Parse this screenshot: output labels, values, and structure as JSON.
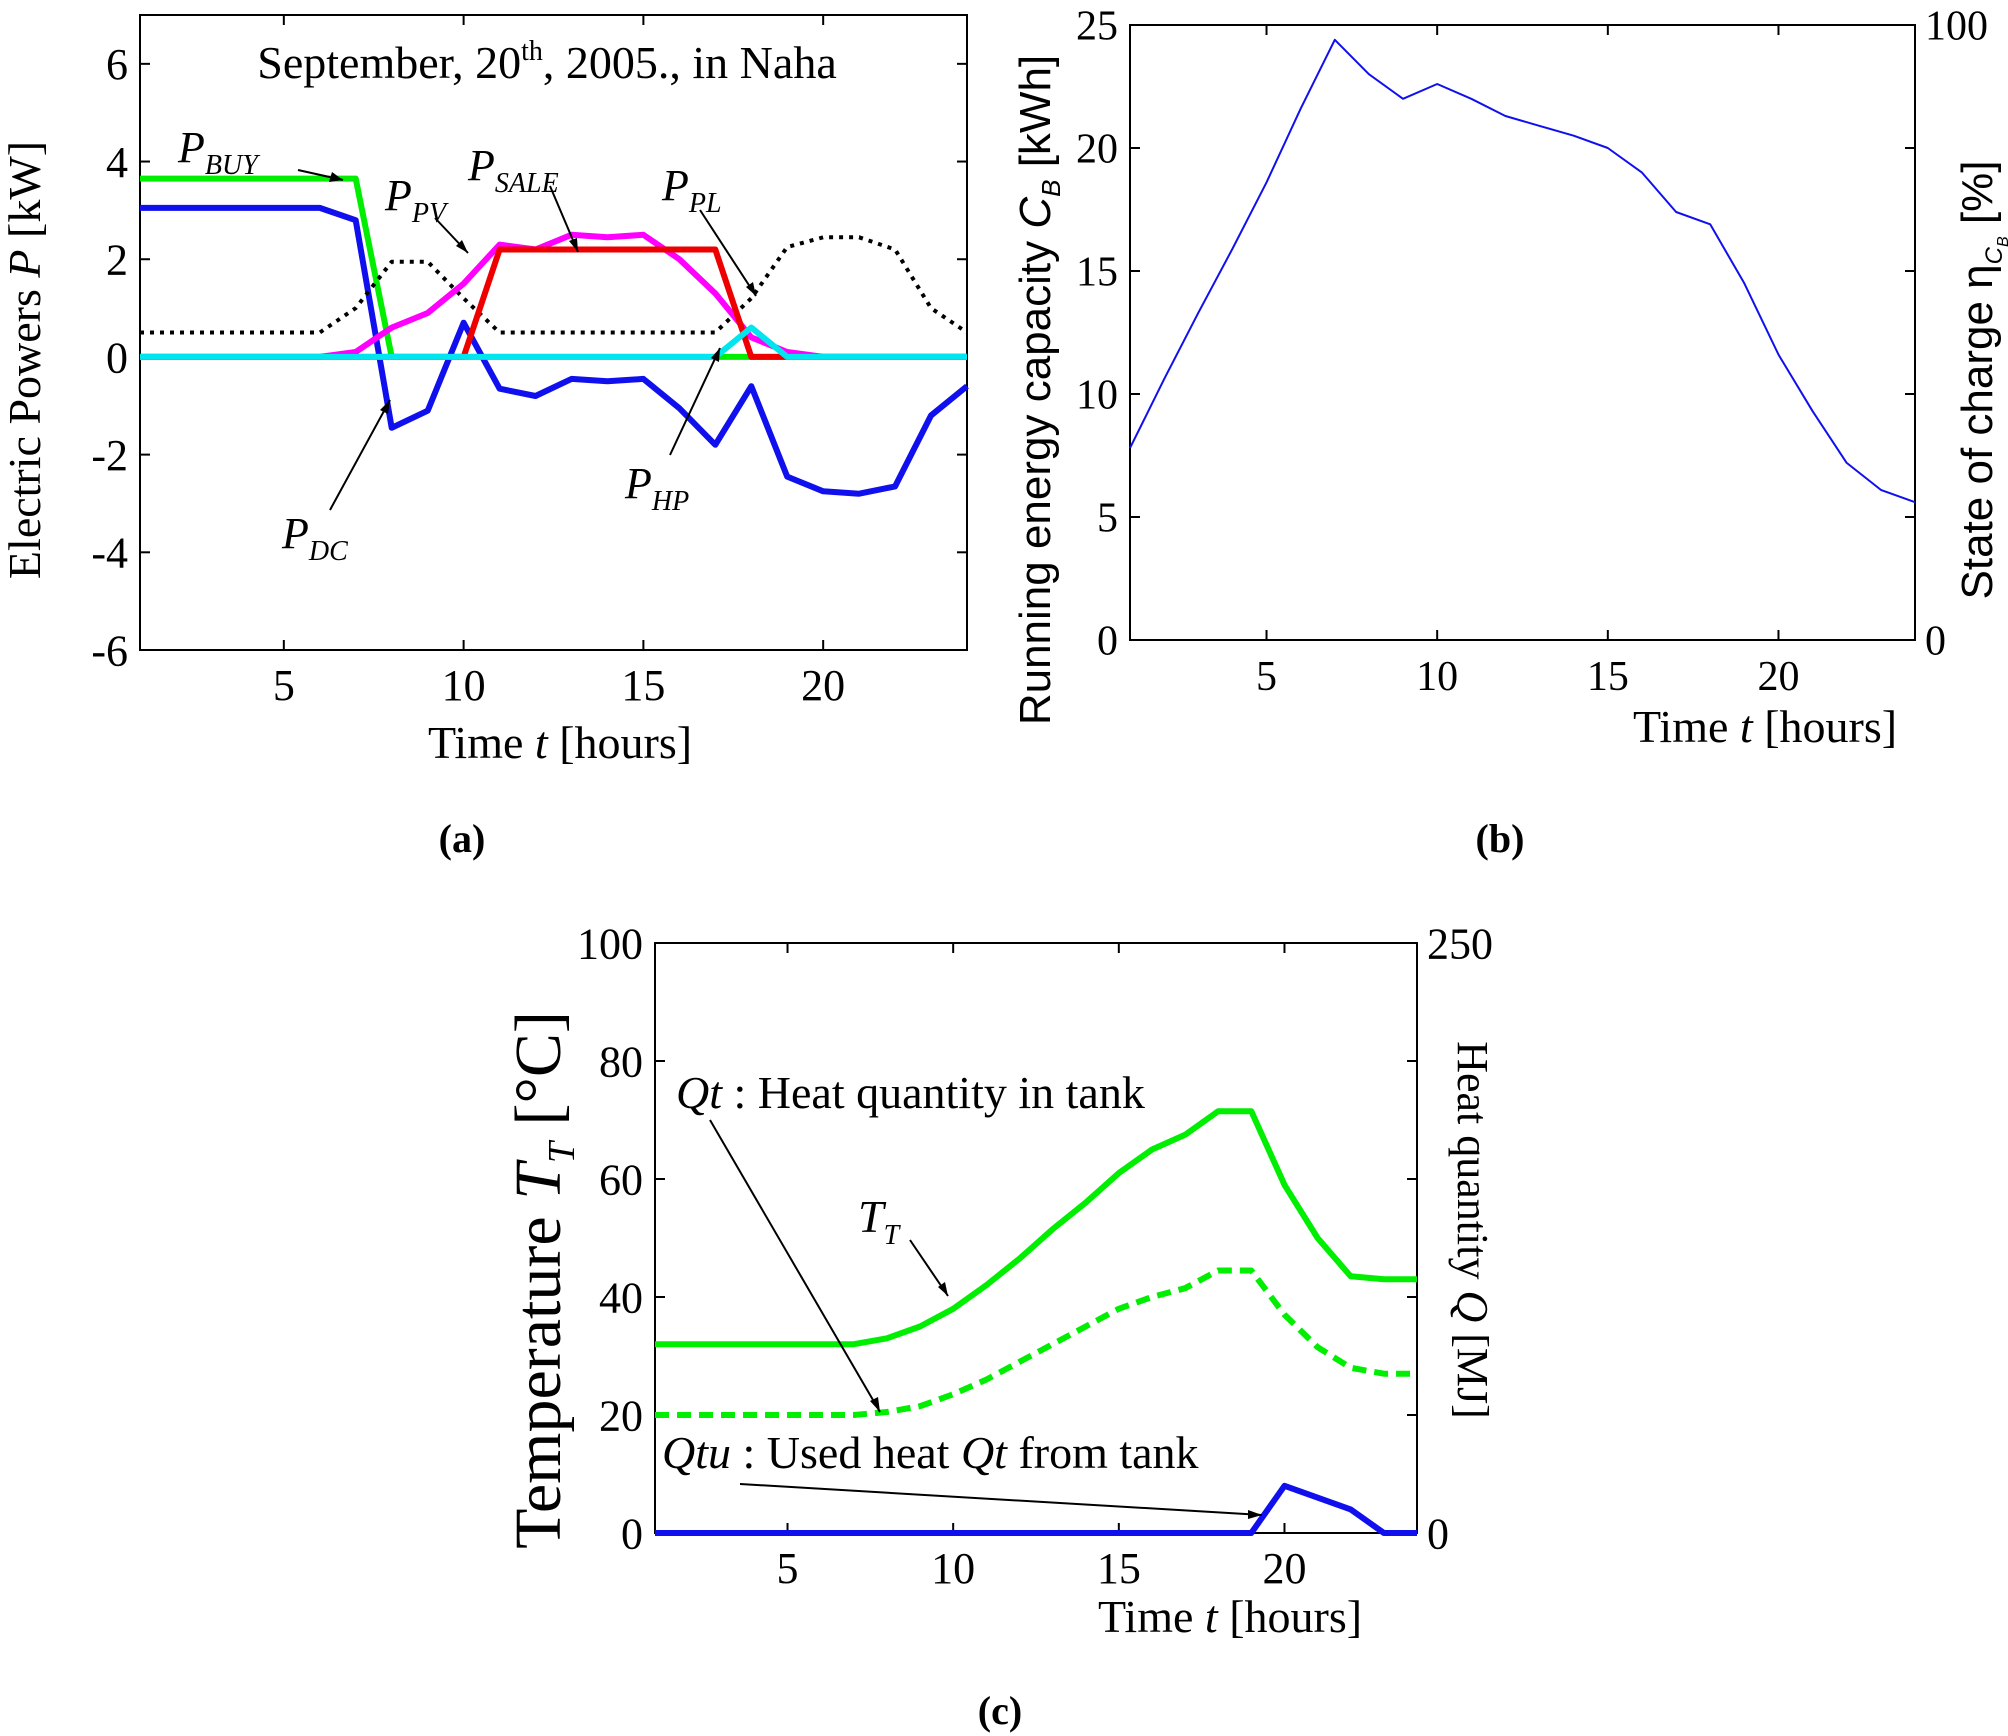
{
  "chart_data": [
    {
      "panel_label": "(a)",
      "type": "line",
      "title": "September, 20th, 2005., in Naha",
      "title_parts": {
        "month": "September, 20",
        "sup": "th",
        "rest": ", 2005., in Naha"
      },
      "xlabel": {
        "pre": "Time ",
        "var": "t",
        "post": " [hours]"
      },
      "ylabel": {
        "pre": "Electric Powers ",
        "var": "P",
        "post": " [kW]"
      },
      "xlim": [
        1,
        24
      ],
      "ylim": [
        -6,
        7
      ],
      "xticks": [
        5,
        10,
        15,
        20
      ],
      "yticks": [
        -6,
        -4,
        -2,
        0,
        2,
        4,
        6
      ],
      "grid": false,
      "series": [
        {
          "key": "buy",
          "name": "P_BUY",
          "color": "#00ee00",
          "dash": "solid",
          "x": [
            1,
            7,
            8,
            24
          ],
          "y": [
            3.65,
            3.65,
            0,
            0
          ]
        },
        {
          "key": "dc",
          "name": "P_DC",
          "color": "#1010ee",
          "dash": "solid",
          "x": [
            1,
            2,
            3,
            4,
            5,
            6,
            7,
            8,
            9,
            10,
            11,
            12,
            13,
            14,
            15,
            16,
            17,
            18,
            19,
            20,
            21,
            22,
            23,
            24
          ],
          "y": [
            3.05,
            3.05,
            3.05,
            3.05,
            3.05,
            3.05,
            2.8,
            -1.45,
            -1.1,
            0.7,
            -0.65,
            -0.8,
            -0.45,
            -0.5,
            -0.45,
            -1.05,
            -1.8,
            -0.6,
            -2.45,
            -2.75,
            -2.8,
            -2.65,
            -1.2,
            -0.6
          ]
        },
        {
          "key": "pl",
          "name": "P_PL",
          "color": "#000000",
          "dash": "dotted",
          "x": [
            1,
            2,
            3,
            4,
            5,
            6,
            7,
            8,
            9,
            10,
            11,
            12,
            13,
            14,
            15,
            16,
            17,
            18,
            19,
            20,
            21,
            22,
            23,
            24
          ],
          "y": [
            0.5,
            0.5,
            0.5,
            0.5,
            0.5,
            0.5,
            1.0,
            1.95,
            1.95,
            1.2,
            0.5,
            0.5,
            0.5,
            0.5,
            0.5,
            0.5,
            0.5,
            1.2,
            2.25,
            2.45,
            2.45,
            2.2,
            1.0,
            0.5
          ]
        },
        {
          "key": "pv",
          "name": "P_PV",
          "color": "#ff00ff",
          "dash": "solid",
          "x": [
            1,
            2,
            3,
            4,
            5,
            6,
            7,
            8,
            9,
            10,
            11,
            12,
            13,
            14,
            15,
            16,
            17,
            18,
            19,
            20,
            21,
            22,
            23,
            24
          ],
          "y": [
            0,
            0,
            0,
            0,
            0,
            0,
            0.1,
            0.6,
            0.9,
            1.5,
            2.3,
            2.2,
            2.5,
            2.45,
            2.5,
            2.0,
            1.3,
            0.4,
            0.1,
            0,
            0,
            0,
            0,
            0
          ]
        },
        {
          "key": "sale",
          "name": "P_SALE",
          "color": "#ee0000",
          "dash": "solid",
          "x": [
            1,
            10,
            11,
            17,
            18,
            24
          ],
          "y": [
            0,
            0,
            2.2,
            2.2,
            0,
            0
          ]
        },
        {
          "key": "hp",
          "name": "P_HP",
          "color": "#00e5ee",
          "dash": "solid",
          "x": [
            1,
            17,
            18,
            19,
            24
          ],
          "y": [
            0,
            0,
            0.6,
            0,
            0
          ]
        }
      ],
      "annotations": [
        {
          "key": "buy",
          "main": "P",
          "sub": "BUY"
        },
        {
          "key": "pv",
          "main": "P",
          "sub": "PV"
        },
        {
          "key": "sale",
          "main": "P",
          "sub": "SALE"
        },
        {
          "key": "pl",
          "main": "P",
          "sub": "PL"
        },
        {
          "key": "dc",
          "main": "P",
          "sub": "DC"
        },
        {
          "key": "hp",
          "main": "P",
          "sub": "HP"
        }
      ]
    },
    {
      "panel_label": "(b)",
      "type": "line",
      "title": "",
      "xlabel": {
        "pre": "Time ",
        "var": "t",
        "post": " [hours]"
      },
      "ylabel": {
        "pre": "Running energy capacity ",
        "var": "C",
        "sub": "B",
        "post": " [kWh]"
      },
      "y2label": {
        "pre": "State of charge η",
        "sub": "C",
        "subsub": "B",
        "post": " [%]"
      },
      "xlim": [
        1,
        24
      ],
      "ylim": [
        0,
        25
      ],
      "y2lim": [
        0,
        100
      ],
      "xticks": [
        5,
        10,
        15,
        20
      ],
      "yticks": [
        0,
        5,
        10,
        15,
        20,
        25
      ],
      "y2ticks": [
        0,
        100
      ],
      "grid": false,
      "series": [
        {
          "key": "cb",
          "name": "",
          "color": "#1010ee",
          "dash": "solid",
          "x": [
            1,
            2,
            3,
            4,
            5,
            6,
            7,
            8,
            9,
            10,
            11,
            12,
            13,
            14,
            15,
            16,
            17,
            18,
            19,
            20,
            21,
            22,
            23,
            24
          ],
          "y": [
            7.8,
            10.6,
            13.3,
            15.9,
            18.6,
            21.6,
            24.4,
            23.0,
            22.0,
            22.6,
            22.0,
            21.3,
            20.9,
            20.5,
            20.0,
            19.0,
            17.4,
            16.9,
            14.5,
            11.6,
            9.3,
            7.2,
            6.1,
            5.6
          ]
        }
      ]
    },
    {
      "panel_label": "(c)",
      "type": "line",
      "title": "",
      "xlabel": {
        "pre": "Time ",
        "var": "t",
        "post": " [hours]"
      },
      "ylabel": {
        "pre": "Temperature ",
        "var": "T",
        "sub": "T",
        "post": " [°C]"
      },
      "y2label": {
        "pre": "Heat quantity ",
        "var": "Q",
        "post": " [MJ]"
      },
      "xlim": [
        1,
        24
      ],
      "ylim": [
        0,
        100
      ],
      "y2lim": [
        0,
        250
      ],
      "xticks": [
        5,
        10,
        15,
        20
      ],
      "yticks": [
        0,
        20,
        40,
        60,
        80,
        100
      ],
      "y2ticks": [
        0,
        250
      ],
      "grid": false,
      "series": [
        {
          "key": "tt",
          "name": "T_T",
          "color": "#00ee00",
          "dash": "solid",
          "axis": "left",
          "x": [
            1,
            2,
            3,
            4,
            5,
            6,
            7,
            8,
            9,
            10,
            11,
            12,
            13,
            14,
            15,
            16,
            17,
            18,
            19,
            20,
            21,
            22,
            23,
            24
          ],
          "y": [
            32,
            32,
            32,
            32,
            32,
            32,
            32,
            33,
            35,
            38,
            42,
            46.5,
            51.5,
            56,
            61,
            65,
            67.5,
            71.5,
            71.5,
            59,
            50,
            43.5,
            43,
            43
          ]
        },
        {
          "key": "qt",
          "name": "Qt",
          "color": "#00ee00",
          "dash": "dashed",
          "axis": "left",
          "x": [
            1,
            2,
            3,
            4,
            5,
            6,
            7,
            8,
            9,
            10,
            11,
            12,
            13,
            14,
            15,
            16,
            17,
            18,
            19,
            20,
            21,
            22,
            23,
            24
          ],
          "y": [
            20,
            20,
            20,
            20,
            20,
            20,
            20,
            20.5,
            21.5,
            23.5,
            26,
            29,
            32,
            35,
            38,
            40,
            41.5,
            44.5,
            44.5,
            37,
            31.5,
            28,
            27,
            27
          ]
        },
        {
          "key": "qtu",
          "name": "Qtu",
          "color": "#1010ee",
          "dash": "solid",
          "axis": "left",
          "x": [
            1,
            19,
            20,
            22,
            23,
            24
          ],
          "y": [
            0,
            0,
            8,
            4,
            0,
            0
          ]
        }
      ],
      "annotations": [
        {
          "key": "qt",
          "var": "Qt",
          "text": " : Heat quantity in tank"
        },
        {
          "key": "tt",
          "main": "T",
          "sub": "T"
        },
        {
          "key": "qtu",
          "var": "Qtu",
          "text1": " : Used heat ",
          "var2": "Qt",
          "text2": " from tank"
        }
      ]
    }
  ]
}
